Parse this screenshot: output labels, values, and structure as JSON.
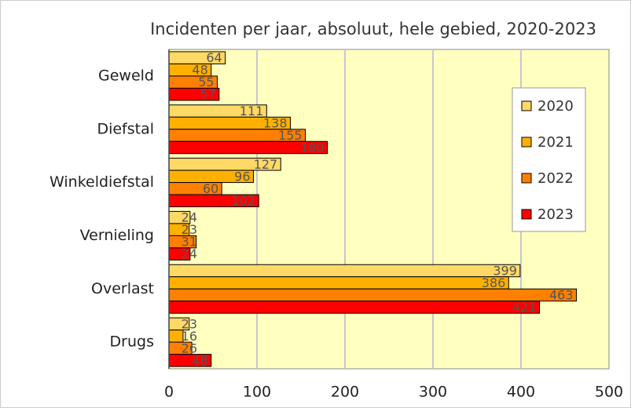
{
  "chart_data": {
    "type": "bar",
    "orientation": "horizontal",
    "title": "Incidenten per jaar, absoluut, hele gebied, 2020-2023",
    "categories": [
      "Geweld",
      "Diefstal",
      "Winkeldiefstal",
      "Vernieling",
      "Overlast",
      "Drugs"
    ],
    "series": [
      {
        "name": "2020",
        "color": "#FFD966",
        "values": [
          64,
          111,
          127,
          24,
          399,
          23
        ]
      },
      {
        "name": "2021",
        "color": "#FFB000",
        "values": [
          48,
          138,
          96,
          23,
          386,
          16
        ]
      },
      {
        "name": "2022",
        "color": "#FF8000",
        "values": [
          55,
          155,
          60,
          31,
          463,
          26
        ]
      },
      {
        "name": "2023",
        "color": "#FF0000",
        "values": [
          57,
          180,
          102,
          24,
          421,
          48
        ]
      }
    ],
    "xlim": [
      0,
      500
    ],
    "xticks": [
      0,
      100,
      200,
      300,
      400,
      500
    ],
    "grid": true,
    "legend": "upper right",
    "background": "#FFFFC0"
  }
}
